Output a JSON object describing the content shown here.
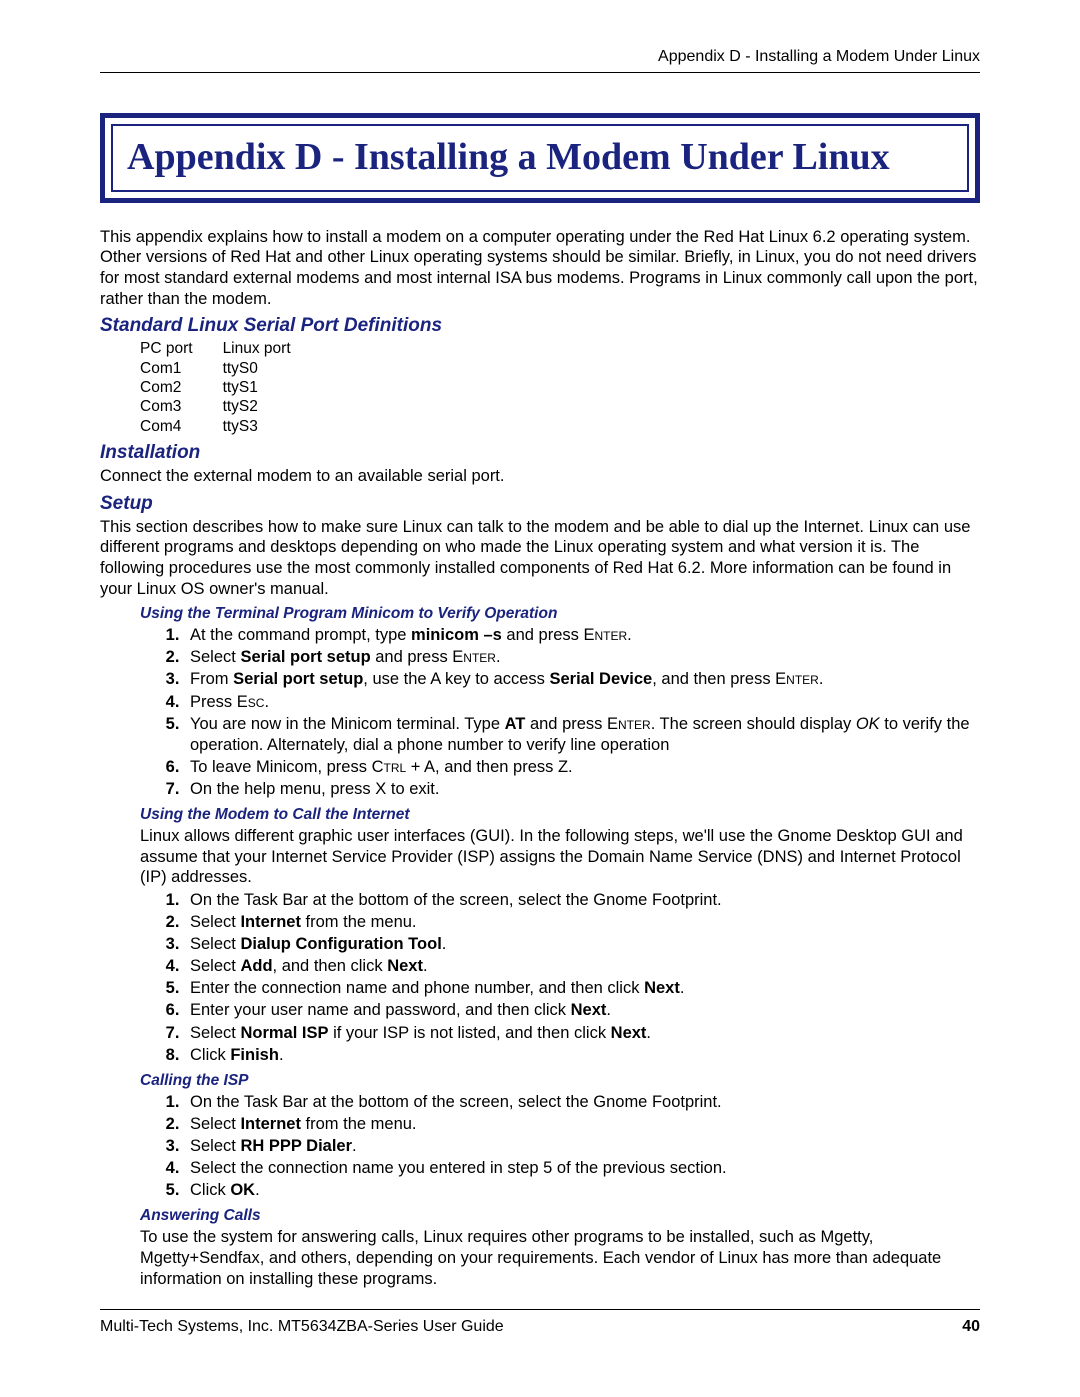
{
  "header": {
    "running_head": "Appendix D - Installing a Modem Under Linux"
  },
  "title": "Appendix D - Installing a Modem Under Linux",
  "intro": "This appendix explains how to install a modem on a computer operating under the Red Hat Linux 6.2 operating system. Other versions of Red Hat and other Linux operating systems should be similar. Briefly, in Linux, you do not need drivers for most standard external modems and most internal ISA bus modems. Programs in Linux commonly call upon the port, rather than the modem.",
  "sections": {
    "ports_heading": "Standard Linux Serial Port Definitions",
    "ports_table": {
      "header": {
        "c1": "PC port",
        "c2": "Linux port"
      },
      "rows": [
        {
          "c1": "Com1",
          "c2": "ttyS0"
        },
        {
          "c1": "Com2",
          "c2": "ttyS1"
        },
        {
          "c1": "Com3",
          "c2": "ttyS2"
        },
        {
          "c1": "Com4",
          "c2": "ttyS3"
        }
      ]
    },
    "installation_heading": "Installation",
    "installation_text": "Connect the external modem to an available serial port.",
    "setup_heading": "Setup",
    "setup_text": "This section describes how to make sure Linux can talk to the modem and be able to dial up the Internet. Linux can use different programs and desktops depending on who made the Linux operating system and what version it is. The following procedures use the most commonly installed components of Red Hat 6.2. More information can be found in your Linux OS owner's manual.",
    "minicom_heading": "Using the Terminal Program Minicom to Verify Operation",
    "internet_heading": "Using the Modem to Call the Internet",
    "internet_text": "Linux allows different graphic user interfaces (GUI). In the following steps, we'll use the Gnome Desktop GUI and assume that your Internet Service Provider (ISP) assigns the Domain Name Service (DNS) and Internet Protocol (IP) addresses.",
    "isp_heading": "Calling the ISP",
    "answering_heading": "Answering Calls",
    "answering_text": "To use the system for answering calls, Linux requires other programs to be installed, such as Mgetty, Mgetty+Sendfax, and others, depending on your requirements. Each vendor of Linux has more than adequate information on installing these programs."
  },
  "footer": {
    "left": "Multi-Tech Systems, Inc. MT5634ZBA-Series User Guide",
    "page": "40"
  },
  "colors": {
    "brand": "#1a237e",
    "text": "#000000",
    "background": "#ffffff"
  }
}
